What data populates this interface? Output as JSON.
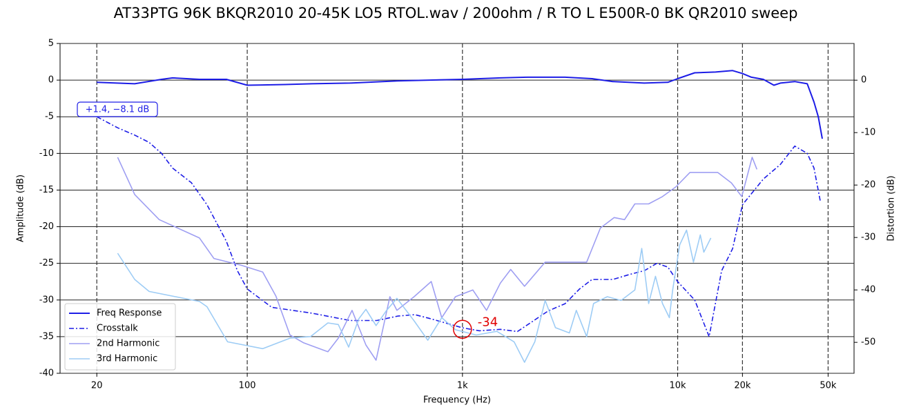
{
  "chart_data": {
    "type": "line",
    "title": "AT33PTG 96K BKQR2010 20-45K LO5 RTOL.wav  / 200ohm / R TO L E500R-0 BK QR2010 sweep",
    "xlabel": "Frequency (Hz)",
    "ylabel": "Amplitude (dB)",
    "y2label": "Distortion (dB)",
    "xscale": "log",
    "xlim": [
      13.5,
      66000
    ],
    "xticks": [
      20,
      100,
      {
        "value": 1000,
        "label": "1k"
      },
      {
        "value": 10000,
        "label": "10k"
      },
      {
        "value": 20000,
        "label": "20k"
      },
      {
        "value": 50000,
        "label": "50k"
      }
    ],
    "ylim": [
      -40,
      5
    ],
    "yticks": [
      5,
      0,
      -5,
      -10,
      -15,
      -20,
      -25,
      -30,
      -35,
      -40
    ],
    "y2lim": [
      -55.9,
      7
    ],
    "y2ticks": [
      0,
      -10,
      -20,
      -30,
      -40,
      -50
    ],
    "grid": true,
    "legend": "lower left",
    "series": [
      {
        "name": "Freq Response",
        "color": "#1c1ce6",
        "linestyle": "solid",
        "width": 2,
        "x": [
          20,
          30,
          40,
          45,
          60,
          80,
          100,
          150,
          200,
          300,
          500,
          700,
          1000,
          1500,
          2000,
          3000,
          4000,
          5000,
          7000,
          9000,
          10000,
          12000,
          15000,
          18000,
          20000,
          22000,
          25000,
          28000,
          30000,
          35000,
          40000,
          43000,
          45000,
          47000
        ],
        "values": [
          -0.3,
          -0.5,
          0.1,
          0.3,
          0.1,
          0.1,
          -0.7,
          -0.6,
          -0.5,
          -0.4,
          -0.1,
          0,
          0.1,
          0.3,
          0.4,
          0.4,
          0.2,
          -0.2,
          -0.4,
          -0.3,
          0.2,
          1.0,
          1.1,
          1.3,
          0.9,
          0.4,
          0.1,
          -0.7,
          -0.4,
          -0.2,
          -0.5,
          -3,
          -5,
          -8
        ]
      },
      {
        "name": "Crosstalk",
        "color": "#1c1ce6",
        "linestyle": "dashdot",
        "width": 1.6,
        "x": [
          20,
          25,
          30,
          35,
          40,
          45,
          55,
          65,
          80,
          90,
          100,
          130,
          200,
          300,
          400,
          500,
          600,
          700,
          1000,
          1200,
          1500,
          1800,
          2500,
          3000,
          3500,
          4000,
          5000,
          6000,
          7000,
          8000,
          9000,
          10000,
          12000,
          14000,
          16000,
          18000,
          20000,
          22000,
          25000,
          30000,
          35000,
          40000,
          43000,
          46000
        ],
        "values": [
          -5,
          -6.5,
          -7.5,
          -8.5,
          -10,
          -12,
          -14,
          -17,
          -22,
          -26,
          -28.5,
          -31,
          -31.8,
          -32.8,
          -32.8,
          -32.2,
          -32,
          -32.5,
          -33.8,
          -34.2,
          -34,
          -34.3,
          -31.5,
          -30.5,
          -28.5,
          -27.2,
          -27.2,
          -26.5,
          -26,
          -25,
          -25.5,
          -27.5,
          -30,
          -35,
          -26,
          -23,
          -17,
          -15.5,
          -13.5,
          -11.5,
          -9,
          -10,
          -12,
          -16.5
        ]
      },
      {
        "name": "2nd Harmonic",
        "color": "#9e9ef2",
        "linestyle": "solid",
        "width": 1.6,
        "axis": "y2",
        "x": [
          25,
          30,
          39,
          60,
          70,
          94,
          118,
          136,
          158,
          183,
          237,
          265,
          307,
          356,
          397,
          460,
          496,
          596,
          716,
          801,
          928,
          1117,
          1294,
          1500,
          1676,
          1942,
          2422,
          3256,
          3776,
          4376,
          5070,
          5664,
          6325,
          7330,
          8495,
          9840,
          11400,
          15340,
          17780,
          19860,
          22180,
          23340
        ],
        "values": [
          -14.7,
          -21.8,
          -26.6,
          -30.1,
          -34,
          -35.3,
          -36.6,
          -41.2,
          -48.6,
          -50.1,
          -51.8,
          -49.2,
          -43.9,
          -50.5,
          -53.4,
          -41.3,
          -43.9,
          -41.3,
          -38.4,
          -45.3,
          -41.3,
          -40,
          -43.9,
          -38.7,
          -36.1,
          -39.3,
          -34.7,
          -34.7,
          -34.7,
          -28.2,
          -26.2,
          -26.6,
          -23.6,
          -23.6,
          -22.2,
          -20.3,
          -17.6,
          -17.6,
          -19.6,
          -22.2,
          -14.7,
          -17
        ]
      },
      {
        "name": "3rd Harmonic",
        "color": "#9dccf5",
        "linestyle": "solid",
        "width": 1.6,
        "axis": "y2",
        "x": [
          25,
          30,
          35,
          60,
          65,
          81,
          118,
          158,
          197,
          237,
          265,
          296,
          330,
          356,
          397,
          444,
          496,
          596,
          690,
          801,
          928,
          1158,
          1445,
          1738,
          1942,
          2168,
          2422,
          2705,
          3140,
          3380,
          3776,
          4065,
          4710,
          5460,
          6325,
          6810,
          7330,
          7890,
          8495,
          9150,
          9480,
          10220,
          11000,
          11840,
          12740,
          13230,
          14260
        ],
        "values": [
          -33,
          -38,
          -40.3,
          -42.2,
          -43.2,
          -49.9,
          -51.2,
          -49.2,
          -48.9,
          -46.3,
          -46.6,
          -50.9,
          -45.5,
          -43.7,
          -46.8,
          -43.9,
          -41.6,
          -45.9,
          -49.6,
          -45.3,
          -47.6,
          -48.6,
          -47.9,
          -49.9,
          -53.8,
          -49.9,
          -42,
          -47.2,
          -48.2,
          -43.9,
          -48.9,
          -42.6,
          -41.3,
          -42,
          -40,
          -32.1,
          -42.6,
          -37.4,
          -42.6,
          -45.3,
          -40,
          -31.4,
          -28.6,
          -34.7,
          -29.5,
          -32.8,
          -30.1
        ]
      }
    ],
    "annotations": [
      {
        "text": "+1.4, −8.1 dB",
        "color": "#1c1ce6"
      },
      {
        "text": "-34",
        "x": 1000,
        "y": -34,
        "color": "#e00000"
      }
    ]
  }
}
